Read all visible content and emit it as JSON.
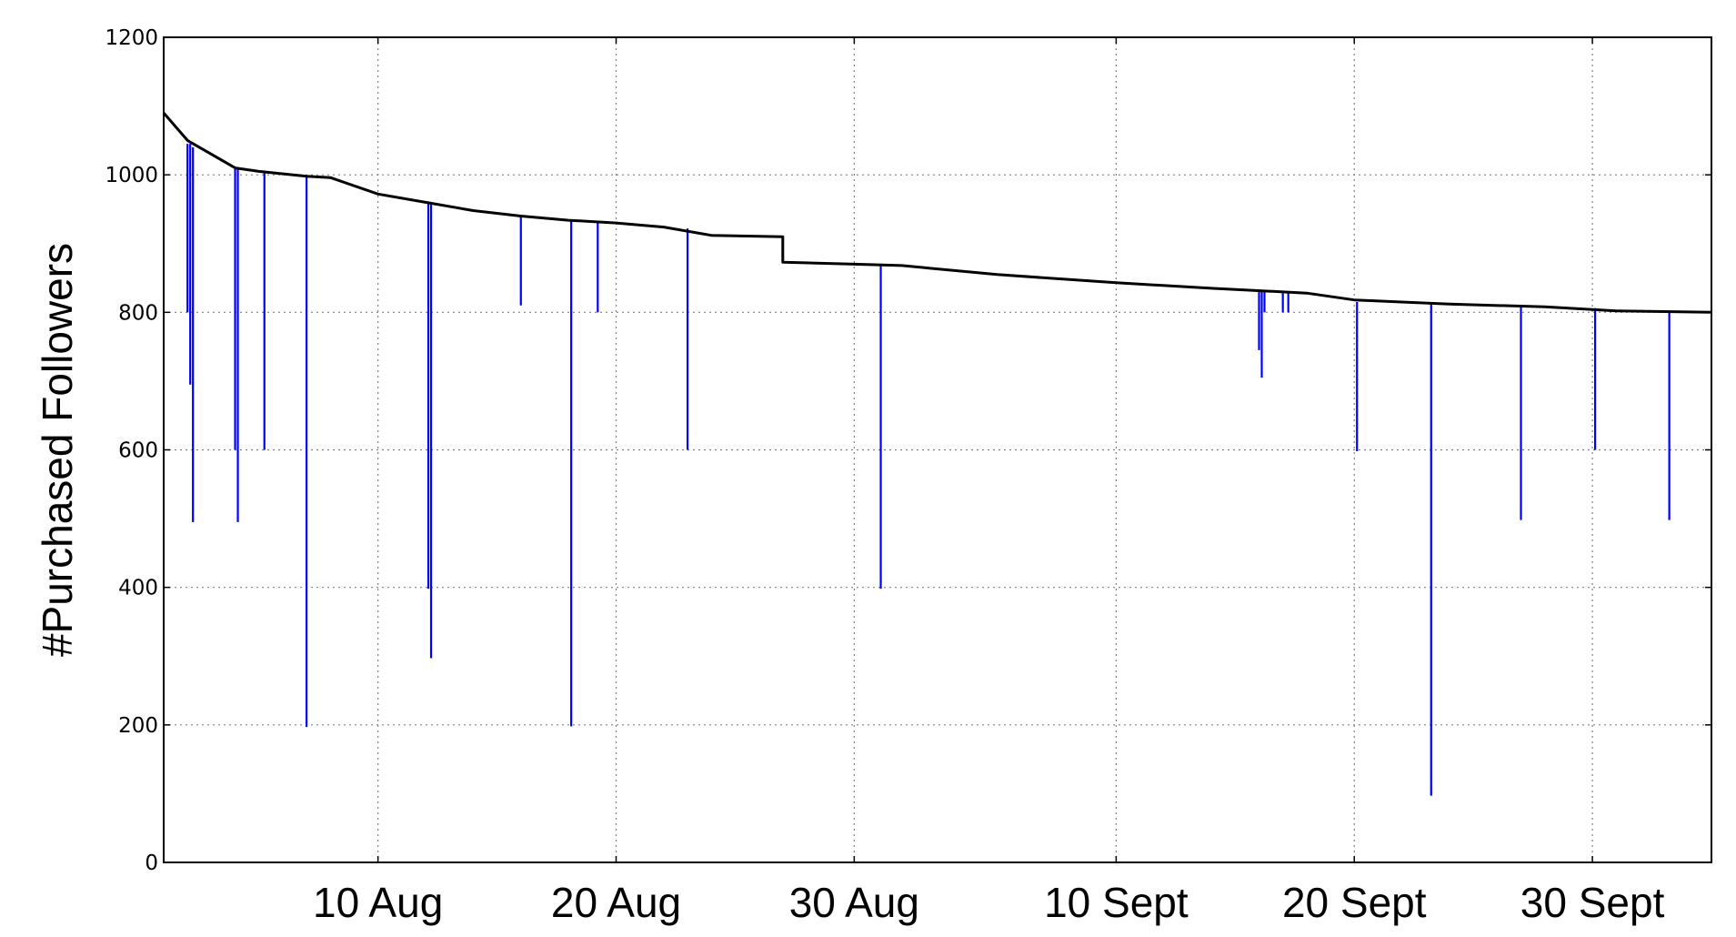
{
  "chart_data": {
    "type": "line",
    "title": "",
    "xlabel": "",
    "ylabel": "#Purchased Followers",
    "ylim": [
      0,
      1200
    ],
    "xlim": [
      "2012-08-01",
      "2012-10-05"
    ],
    "yticks": [
      0,
      200,
      400,
      600,
      800,
      1000,
      1200
    ],
    "yticklabels": [
      "0",
      "200",
      "400",
      "600",
      "800",
      "1000",
      "1200"
    ],
    "xticks": [
      "2012-08-10",
      "2012-08-20",
      "2012-08-30",
      "2012-09-10",
      "2012-09-20",
      "2012-09-30"
    ],
    "xticklabels": [
      "10 Aug",
      "20 Aug",
      "30 Aug",
      "10 Sept",
      "20 Sept",
      "30 Sept"
    ],
    "grid": true,
    "colors": {
      "trend": "#000000",
      "series": "#0000ff",
      "grid": "#808080"
    },
    "series": [
      {
        "color": "#000000",
        "x": [
          "2012-08-01",
          "2012-08-02",
          "2012-08-04",
          "2012-08-05",
          "2012-08-07",
          "2012-08-08",
          "2012-08-10",
          "2012-08-12",
          "2012-08-14",
          "2012-08-16",
          "2012-08-18",
          "2012-08-20",
          "2012-08-22",
          "2012-08-24",
          "2012-08-27",
          "2012-08-27",
          "2012-08-30",
          "2012-09-01",
          "2012-09-05",
          "2012-09-10",
          "2012-09-14",
          "2012-09-18",
          "2012-09-20",
          "2012-09-24",
          "2012-09-28",
          "2012-10-01",
          "2012-10-05"
        ],
        "y": [
          1090,
          1050,
          1010,
          1005,
          998,
          996,
          972,
          960,
          948,
          940,
          934,
          930,
          924,
          912,
          910,
          873,
          870,
          868,
          855,
          843,
          835,
          828,
          818,
          812,
          808,
          802,
          800
        ]
      }
    ],
    "dips": [
      {
        "x": "2012-08-02",
        "top": 1045,
        "bottom": 800
      },
      {
        "x": "2012-08-02",
        "top": 1045,
        "bottom": 695
      },
      {
        "x": "2012-08-02",
        "top": 1040,
        "bottom": 495
      },
      {
        "x": "2012-08-04",
        "top": 1010,
        "bottom": 600
      },
      {
        "x": "2012-08-04",
        "top": 1010,
        "bottom": 495
      },
      {
        "x": "2012-08-05",
        "top": 1005,
        "bottom": 600
      },
      {
        "x": "2012-08-07",
        "top": 998,
        "bottom": 197
      },
      {
        "x": "2012-08-12",
        "top": 960,
        "bottom": 398
      },
      {
        "x": "2012-08-12",
        "top": 958,
        "bottom": 297
      },
      {
        "x": "2012-08-16",
        "top": 940,
        "bottom": 810
      },
      {
        "x": "2012-08-18",
        "top": 934,
        "bottom": 198
      },
      {
        "x": "2012-08-19",
        "top": 932,
        "bottom": 800
      },
      {
        "x": "2012-08-23",
        "top": 922,
        "bottom": 600
      },
      {
        "x": "2012-08-31",
        "top": 868,
        "bottom": 398
      },
      {
        "x": "2012-09-16",
        "top": 830,
        "bottom": 800
      },
      {
        "x": "2012-09-16",
        "top": 830,
        "bottom": 745
      },
      {
        "x": "2012-09-16",
        "top": 830,
        "bottom": 705
      },
      {
        "x": "2012-09-17",
        "top": 828,
        "bottom": 800
      },
      {
        "x": "2012-09-17",
        "top": 828,
        "bottom": 800
      },
      {
        "x": "2012-09-20",
        "top": 815,
        "bottom": 598
      },
      {
        "x": "2012-09-23",
        "top": 812,
        "bottom": 97
      },
      {
        "x": "2012-09-27",
        "top": 808,
        "bottom": 498
      },
      {
        "x": "2012-09-30",
        "top": 806,
        "bottom": 600
      },
      {
        "x": "2012-10-03",
        "top": 800,
        "bottom": 498
      }
    ]
  }
}
